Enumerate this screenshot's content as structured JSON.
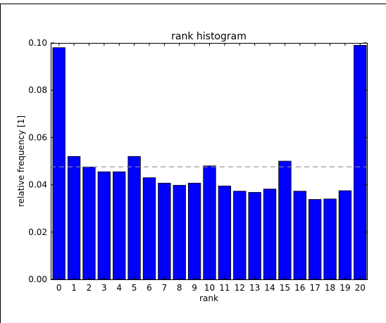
{
  "chart_data": {
    "type": "bar",
    "title": "rank histogram",
    "xlabel": "rank",
    "ylabel": "relative frequency [1]",
    "categories": [
      "0",
      "1",
      "2",
      "3",
      "4",
      "5",
      "6",
      "7",
      "8",
      "9",
      "10",
      "11",
      "12",
      "13",
      "14",
      "15",
      "16",
      "17",
      "18",
      "19",
      "20"
    ],
    "values": [
      0.098,
      0.052,
      0.0475,
      0.0455,
      0.0455,
      0.052,
      0.043,
      0.0407,
      0.0398,
      0.0407,
      0.048,
      0.0395,
      0.0373,
      0.0368,
      0.0382,
      0.05,
      0.0373,
      0.0338,
      0.034,
      0.0375,
      0.099
    ],
    "ylim": [
      0,
      0.1
    ],
    "yticks": [
      "0.00",
      "0.02",
      "0.04",
      "0.06",
      "0.08",
      "0.10"
    ],
    "reference_line": 0.0476,
    "grid": false,
    "bar_color": "#0000ff",
    "reference_line_color": "#8c8c8c"
  }
}
